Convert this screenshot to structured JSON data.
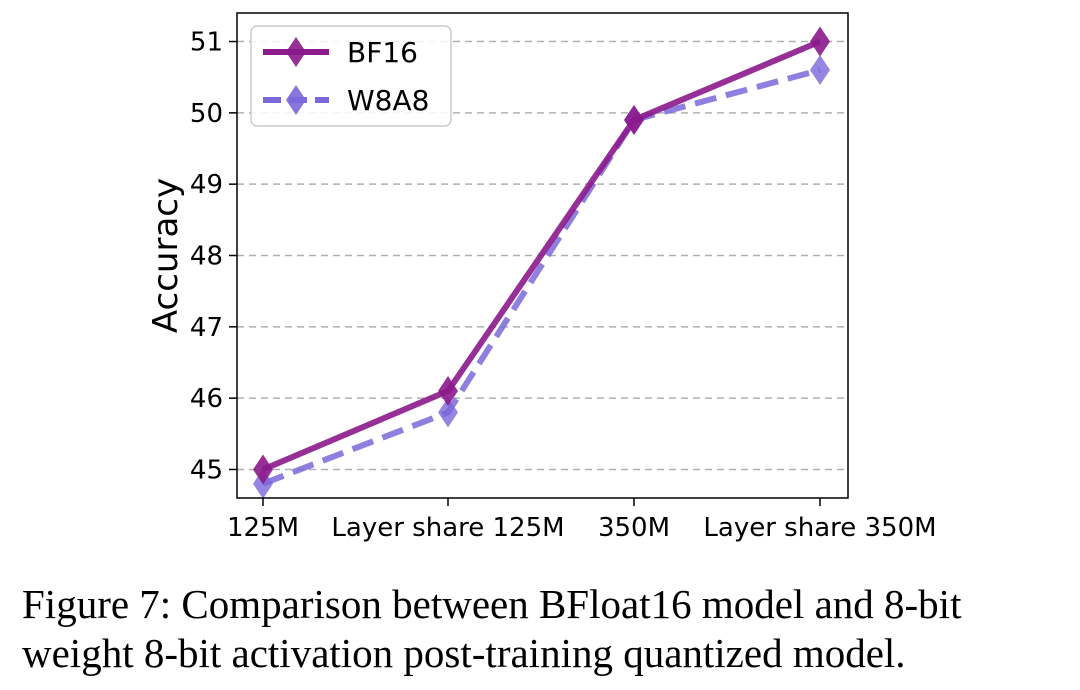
{
  "chart_data": {
    "type": "line",
    "categories": [
      "125M",
      "Layer share 125M",
      "350M",
      "Layer share 350M"
    ],
    "series": [
      {
        "name": "BF16",
        "values": [
          45.0,
          46.1,
          49.9,
          51.0
        ],
        "color": "#8b1a8b",
        "dash": "solid",
        "marker": "diamond"
      },
      {
        "name": "W8A8",
        "values": [
          44.8,
          45.8,
          49.9,
          50.6
        ],
        "color": "#7b68d9",
        "dash": "dashed",
        "marker": "diamond"
      }
    ],
    "xlabel": "",
    "ylabel": "Accuracy",
    "ylim": [
      44.6,
      51.4
    ],
    "yticks": [
      45,
      46,
      47,
      48,
      49,
      50,
      51
    ],
    "grid": "y-dashed",
    "legend_position": "top-left"
  },
  "caption": "Figure 7: Comparison between BFloat16 model and 8-bit weight 8-bit activation post-training quantized model."
}
